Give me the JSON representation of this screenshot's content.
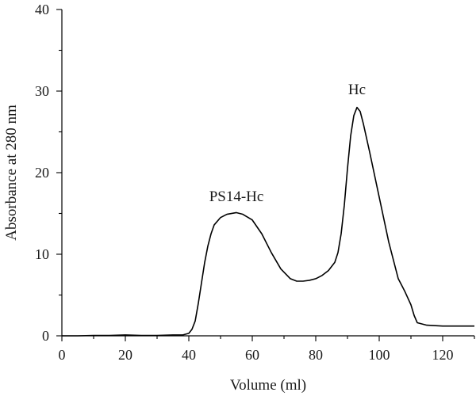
{
  "chart_data": {
    "type": "line",
    "title": "",
    "xlabel": "Volume (ml)",
    "ylabel": "Absorbance at 280 nm",
    "xlim": [
      0,
      130
    ],
    "ylim": [
      0,
      40
    ],
    "x_ticks": [
      0,
      20,
      40,
      60,
      80,
      100,
      120
    ],
    "y_ticks": [
      0,
      10,
      20,
      30,
      40
    ],
    "grid": false,
    "legend": "none",
    "color": "#000000",
    "series": [
      {
        "points": [
          [
            0,
            0.0
          ],
          [
            5,
            0.0
          ],
          [
            10,
            0.05
          ],
          [
            15,
            0.05
          ],
          [
            20,
            0.1
          ],
          [
            25,
            0.05
          ],
          [
            30,
            0.05
          ],
          [
            35,
            0.1
          ],
          [
            38,
            0.1
          ],
          [
            40,
            0.3
          ],
          [
            41,
            0.8
          ],
          [
            42,
            1.8
          ],
          [
            43,
            4.0
          ],
          [
            44,
            6.5
          ],
          [
            45,
            9.0
          ],
          [
            46,
            11.0
          ],
          [
            47,
            12.5
          ],
          [
            48,
            13.6
          ],
          [
            50,
            14.5
          ],
          [
            52,
            14.9
          ],
          [
            55,
            15.1
          ],
          [
            57,
            14.9
          ],
          [
            60,
            14.2
          ],
          [
            63,
            12.5
          ],
          [
            66,
            10.2
          ],
          [
            69,
            8.2
          ],
          [
            72,
            7.0
          ],
          [
            74,
            6.7
          ],
          [
            76,
            6.7
          ],
          [
            78,
            6.8
          ],
          [
            80,
            7.0
          ],
          [
            82,
            7.4
          ],
          [
            84,
            8.0
          ],
          [
            86,
            9.0
          ],
          [
            87,
            10.2
          ],
          [
            88,
            12.5
          ],
          [
            89,
            16.0
          ],
          [
            90,
            20.5
          ],
          [
            91,
            24.5
          ],
          [
            92,
            27.0
          ],
          [
            93,
            28.0
          ],
          [
            94,
            27.5
          ],
          [
            95,
            26.0
          ],
          [
            97,
            22.5
          ],
          [
            100,
            17.0
          ],
          [
            103,
            11.5
          ],
          [
            106,
            7.0
          ],
          [
            108,
            5.5
          ],
          [
            110,
            3.8
          ],
          [
            111,
            2.5
          ],
          [
            112,
            1.6
          ],
          [
            115,
            1.3
          ],
          [
            120,
            1.2
          ],
          [
            125,
            1.2
          ],
          [
            130,
            1.2
          ]
        ]
      }
    ],
    "annotations": [
      {
        "text": "PS14-Hc",
        "x": 55,
        "y": 16.5
      },
      {
        "text": "Hc",
        "x": 93,
        "y": 29.6
      }
    ]
  }
}
